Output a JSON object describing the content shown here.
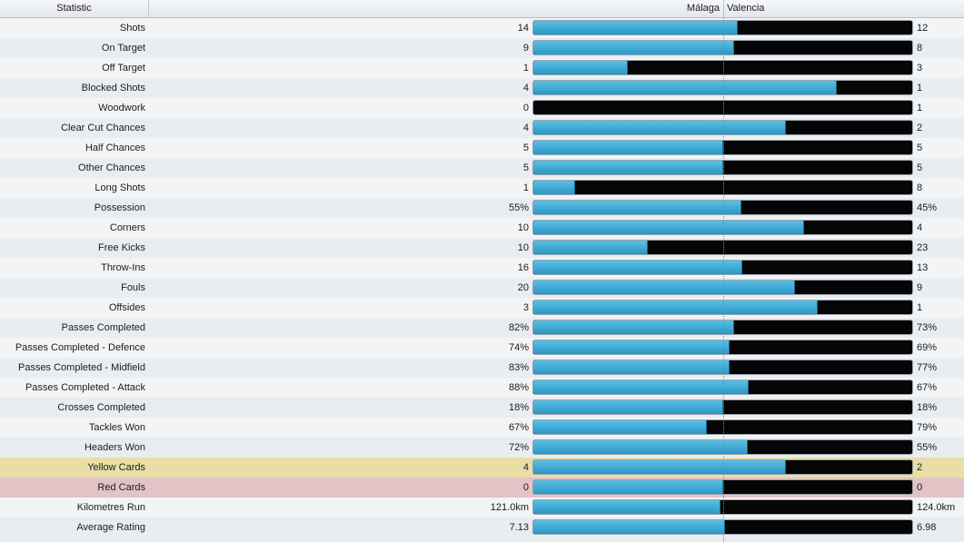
{
  "header": {
    "statistic_label": "Statistic",
    "home_team": "Málaga",
    "away_team": "Valencia"
  },
  "rows": [
    {
      "label": "Shots",
      "home": "14",
      "away": "12",
      "home_share": 0.54,
      "highlight": ""
    },
    {
      "label": "On Target",
      "home": "9",
      "away": "8",
      "home_share": 0.53,
      "highlight": ""
    },
    {
      "label": "Off Target",
      "home": "1",
      "away": "3",
      "home_share": 0.25,
      "highlight": ""
    },
    {
      "label": "Blocked Shots",
      "home": "4",
      "away": "1",
      "home_share": 0.8,
      "highlight": ""
    },
    {
      "label": "Woodwork",
      "home": "0",
      "away": "1",
      "home_share": 0.0,
      "highlight": ""
    },
    {
      "label": "Clear Cut Chances",
      "home": "4",
      "away": "2",
      "home_share": 0.667,
      "highlight": ""
    },
    {
      "label": "Half Chances",
      "home": "5",
      "away": "5",
      "home_share": 0.5,
      "highlight": ""
    },
    {
      "label": "Other Chances",
      "home": "5",
      "away": "5",
      "home_share": 0.5,
      "highlight": ""
    },
    {
      "label": "Long Shots",
      "home": "1",
      "away": "8",
      "home_share": 0.111,
      "highlight": ""
    },
    {
      "label": "Possession",
      "home": "55%",
      "away": "45%",
      "home_share": 0.55,
      "highlight": ""
    },
    {
      "label": "Corners",
      "home": "10",
      "away": "4",
      "home_share": 0.714,
      "highlight": ""
    },
    {
      "label": "Free Kicks",
      "home": "10",
      "away": "23",
      "home_share": 0.303,
      "highlight": ""
    },
    {
      "label": "Throw-Ins",
      "home": "16",
      "away": "13",
      "home_share": 0.552,
      "highlight": ""
    },
    {
      "label": "Fouls",
      "home": "20",
      "away": "9",
      "home_share": 0.69,
      "highlight": ""
    },
    {
      "label": "Offsides",
      "home": "3",
      "away": "1",
      "home_share": 0.75,
      "highlight": ""
    },
    {
      "label": "Passes Completed",
      "home": "82%",
      "away": "73%",
      "home_share": 0.529,
      "highlight": ""
    },
    {
      "label": "Passes Completed - Defence",
      "home": "74%",
      "away": "69%",
      "home_share": 0.517,
      "highlight": ""
    },
    {
      "label": "Passes Completed - Midfield",
      "home": "83%",
      "away": "77%",
      "home_share": 0.519,
      "highlight": ""
    },
    {
      "label": "Passes Completed - Attack",
      "home": "88%",
      "away": "67%",
      "home_share": 0.568,
      "highlight": ""
    },
    {
      "label": "Crosses Completed",
      "home": "18%",
      "away": "18%",
      "home_share": 0.5,
      "highlight": ""
    },
    {
      "label": "Tackles Won",
      "home": "67%",
      "away": "79%",
      "home_share": 0.459,
      "highlight": ""
    },
    {
      "label": "Headers Won",
      "home": "72%",
      "away": "55%",
      "home_share": 0.567,
      "highlight": ""
    },
    {
      "label": "Yellow Cards",
      "home": "4",
      "away": "2",
      "home_share": 0.667,
      "highlight": "yellow"
    },
    {
      "label": "Red Cards",
      "home": "0",
      "away": "0",
      "home_share": 0.5,
      "highlight": "red"
    },
    {
      "label": "Kilometres Run",
      "home": "121.0km",
      "away": "124.0km",
      "home_share": 0.494,
      "highlight": ""
    },
    {
      "label": "Average Rating",
      "home": "7.13",
      "away": "6.98",
      "home_share": 0.505,
      "highlight": ""
    }
  ],
  "colors": {
    "home_bar": "#3aa9d6",
    "away_bar": "#050505",
    "yellow_row": "#e8dfa6",
    "red_row": "#e2c3c6"
  }
}
